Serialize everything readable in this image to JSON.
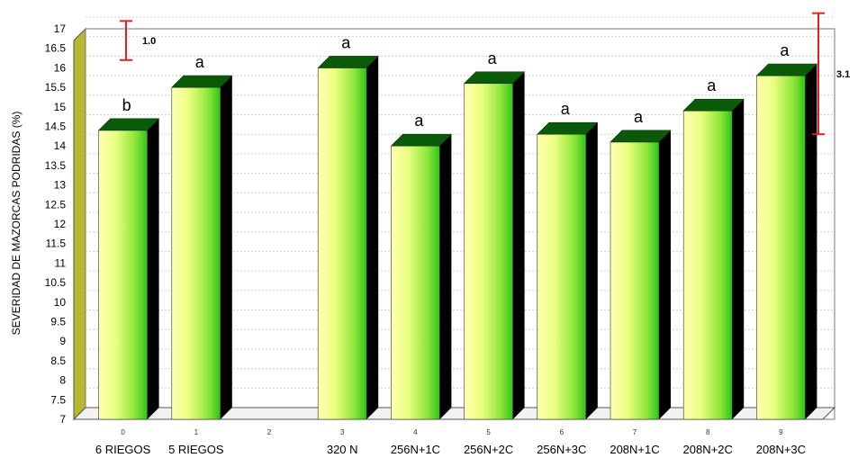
{
  "chart_data": {
    "type": "bar",
    "title": "",
    "xlabel": "",
    "ylabel": "SEVERIDAD DE MAZORCAS PODRIDAS (%)",
    "ylim": [
      7,
      17
    ],
    "yticks": [
      "7",
      "7.5",
      "8",
      "8.5",
      "9",
      "9.5",
      "10",
      "10.5",
      "11",
      "11.5",
      "12",
      "12.5",
      "13",
      "13.5",
      "14",
      "14.5",
      "15",
      "15.5",
      "16",
      "16.5",
      "17"
    ],
    "indices": [
      "0",
      "1",
      "2",
      "3",
      "4",
      "5",
      "6",
      "7",
      "8",
      "9"
    ],
    "categories": [
      "6 RIEGOS",
      "5 RIEGOS",
      "",
      "320 N",
      "256N+1C",
      "256N+2C",
      "256N+3C",
      "208N+1C",
      "208N+2C",
      "208N+3C"
    ],
    "values": [
      14.4,
      15.5,
      null,
      16.0,
      14.0,
      15.6,
      14.3,
      14.1,
      14.9,
      15.8
    ],
    "significance": [
      "b",
      "a",
      "",
      "a",
      "a",
      "a",
      "a",
      "a",
      "a",
      "a"
    ],
    "error_bars": [
      {
        "label": "1.0",
        "from": 15.9,
        "to": 16.9
      },
      {
        "label": "3.1",
        "from": 14.0,
        "to": 17.1
      }
    ],
    "grid": true,
    "colors": {
      "bar_face_light": "#ffffa0",
      "bar_face_dark": "#3ecf1e",
      "bar_top": "#0a5a0a",
      "bar_side": "#000000",
      "left_wall": "#b8b830",
      "error_bar": "#e02020"
    }
  }
}
